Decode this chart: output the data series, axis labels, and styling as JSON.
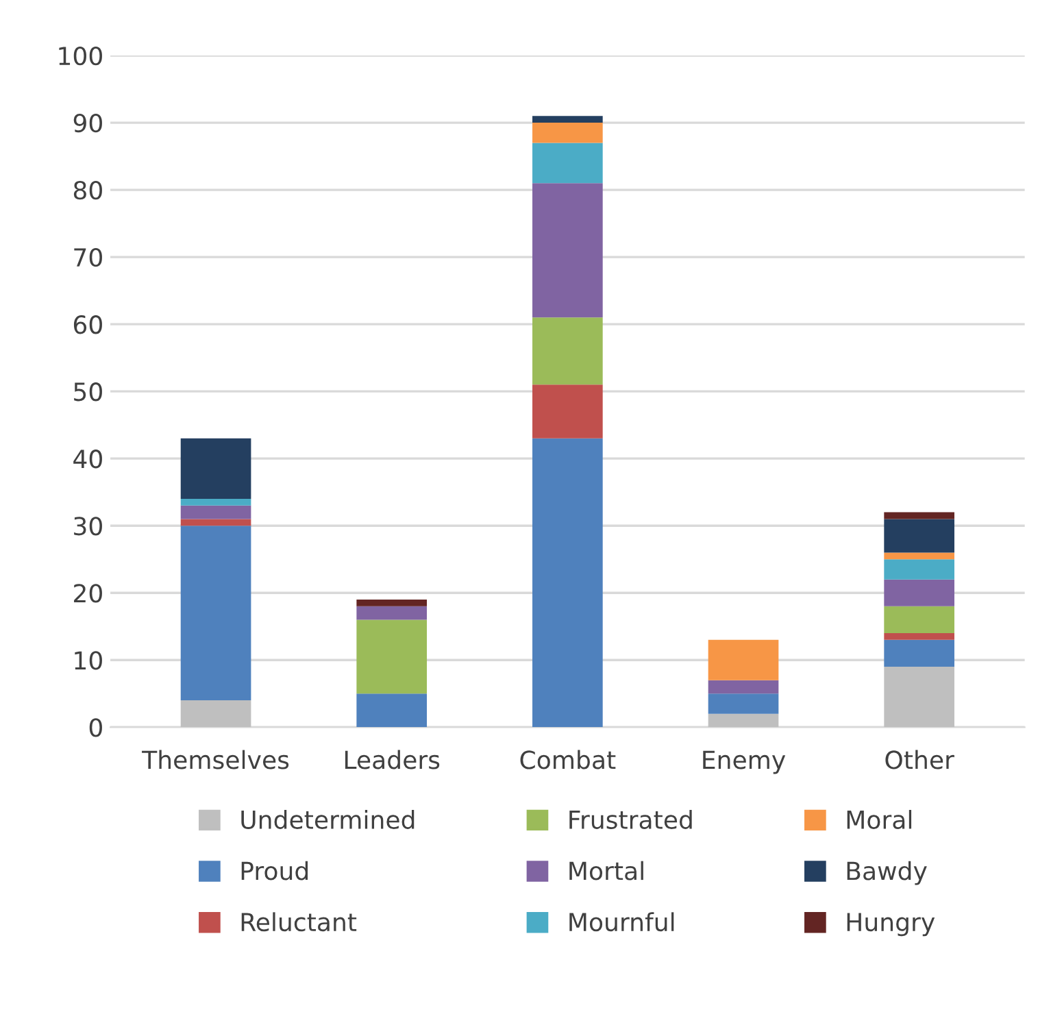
{
  "chart_data": {
    "type": "bar",
    "stacked": true,
    "categories": [
      "Themselves",
      "Leaders",
      "Combat",
      "Enemy",
      "Other"
    ],
    "series": [
      {
        "name": "Undetermined",
        "color": "#bfbfbf",
        "values": [
          4,
          0,
          0,
          2,
          9
        ]
      },
      {
        "name": "Proud",
        "color": "#4f81bd",
        "values": [
          26,
          5,
          43,
          3,
          4
        ]
      },
      {
        "name": "Reluctant",
        "color": "#c0504d",
        "values": [
          1,
          0,
          8,
          0,
          1
        ]
      },
      {
        "name": "Frustrated",
        "color": "#9bbb59",
        "values": [
          0,
          11,
          10,
          0,
          4
        ]
      },
      {
        "name": "Mortal",
        "color": "#8064a2",
        "values": [
          2,
          2,
          20,
          2,
          4
        ]
      },
      {
        "name": "Mournful",
        "color": "#4bacc6",
        "values": [
          1,
          0,
          6,
          0,
          3
        ]
      },
      {
        "name": "Moral",
        "color": "#f79646",
        "values": [
          0,
          0,
          3,
          6,
          1
        ]
      },
      {
        "name": "Bawdy",
        "color": "#243f60",
        "values": [
          9,
          0,
          1,
          0,
          5
        ]
      },
      {
        "name": "Hungry",
        "color": "#632523",
        "values": [
          0,
          1,
          0,
          0,
          1
        ]
      }
    ],
    "ylim": [
      0,
      100
    ],
    "yticks": [
      0,
      10,
      20,
      30,
      40,
      50,
      60,
      70,
      80,
      90,
      100
    ],
    "grid": "y",
    "legend": "bottom"
  }
}
